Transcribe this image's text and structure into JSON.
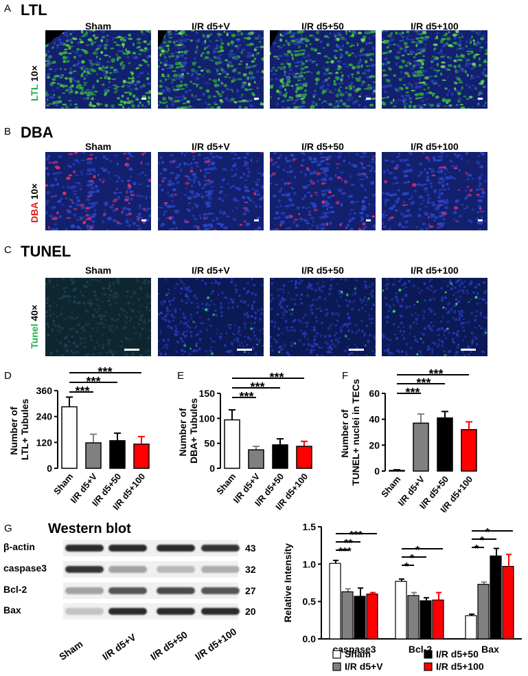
{
  "panels": {
    "A": {
      "letter": "A",
      "title": "LTL",
      "mag": "10×",
      "stain": "LTL",
      "stain_color": "#22b14c"
    },
    "B": {
      "letter": "B",
      "title": "DBA",
      "mag": "10×",
      "stain": "DBA",
      "stain_color": "#e0201e"
    },
    "C": {
      "letter": "C",
      "title": "TUNEL",
      "mag": "40×",
      "stain": "Tunel",
      "stain_color": "#22b14c"
    }
  },
  "columns": [
    "Sham",
    "I/R d5+V",
    "I/R d5+50",
    "I/R d5+100"
  ],
  "letters": {
    "D": "D",
    "E": "E",
    "F": "F",
    "G": "G"
  },
  "western": {
    "title": "Western blot",
    "proteins": [
      "β-actin",
      "caspase3",
      "Bcl-2",
      "Bax"
    ],
    "kda": [
      "43",
      "32",
      "27",
      "20"
    ],
    "lanes": [
      "Sham",
      "I/R d5+V",
      "I/R d5+50",
      "I/R d5+100"
    ]
  },
  "chart_data": [
    {
      "type": "bar",
      "panel": "D",
      "categories": [
        "Sham",
        "I/R d5+V",
        "I/R d5+50",
        "I/R d5+100"
      ],
      "values": [
        285,
        118,
        128,
        112
      ],
      "errors": [
        45,
        40,
        35,
        35
      ],
      "colors": [
        "#ffffff",
        "#808080",
        "#000000",
        "#ff0000"
      ],
      "ylabel": "Number of  LTL+ Tubules",
      "ylim": [
        0,
        360
      ],
      "yticks": [
        "0",
        "120",
        "240",
        "360"
      ],
      "sig": [
        "***",
        "***",
        "***"
      ]
    },
    {
      "type": "bar",
      "panel": "E",
      "categories": [
        "Sham",
        "I/R d5+V",
        "I/R d5+50",
        "I/R d5+100"
      ],
      "values": [
        97,
        37,
        47,
        44
      ],
      "errors": [
        20,
        7,
        12,
        10
      ],
      "colors": [
        "#ffffff",
        "#808080",
        "#000000",
        "#ff0000"
      ],
      "ylabel": "Number of  DBA+ Tubules",
      "ylim": [
        0,
        150
      ],
      "yticks": [
        "0",
        "50",
        "100",
        "150"
      ],
      "sig": [
        "***",
        "***",
        "***"
      ]
    },
    {
      "type": "bar",
      "panel": "F",
      "categories": [
        "Sham",
        "I/R d5+V",
        "I/R d5+50",
        "I/R d5+100"
      ],
      "values": [
        0.5,
        37,
        41,
        32
      ],
      "errors": [
        0.5,
        7,
        5,
        6
      ],
      "colors": [
        "#ffffff",
        "#808080",
        "#000000",
        "#ff0000"
      ],
      "ylabel": "Number of  TUNEL+ nuclei in TECs",
      "ylim": [
        0,
        60
      ],
      "yticks": [
        "0",
        "20",
        "40",
        "60"
      ],
      "sig": [
        "***",
        "***",
        "***"
      ]
    },
    {
      "type": "bar",
      "panel": "G",
      "categories": [
        "caspase3",
        "Bcl-2",
        "Bax"
      ],
      "series": [
        {
          "name": "Sham",
          "color": "#ffffff",
          "values": [
            1.01,
            0.77,
            0.31
          ],
          "errors": [
            0.04,
            0.03,
            0.02
          ]
        },
        {
          "name": "I/R d5+V",
          "color": "#808080",
          "values": [
            0.63,
            0.58,
            0.73
          ],
          "errors": [
            0.04,
            0.04,
            0.03
          ]
        },
        {
          "name": "I/R d5+50",
          "color": "#000000",
          "values": [
            0.57,
            0.51,
            1.11
          ],
          "errors": [
            0.11,
            0.04,
            0.1
          ]
        },
        {
          "name": "I/R d5+100",
          "color": "#ff0000",
          "values": [
            0.6,
            0.52,
            0.97
          ],
          "errors": [
            0.02,
            0.1,
            0.16
          ]
        }
      ],
      "ylabel": "Relative Intensity",
      "ylim": [
        0,
        1.5
      ],
      "yticks": [
        "0.0",
        "0.5",
        "1.0",
        "1.5"
      ],
      "sig": {
        "caspase3": [
          "***",
          "**",
          "***"
        ],
        "Bcl-2": [
          "*",
          "*",
          "*"
        ],
        "Bax": [
          "*",
          "*",
          "*"
        ]
      }
    }
  ]
}
